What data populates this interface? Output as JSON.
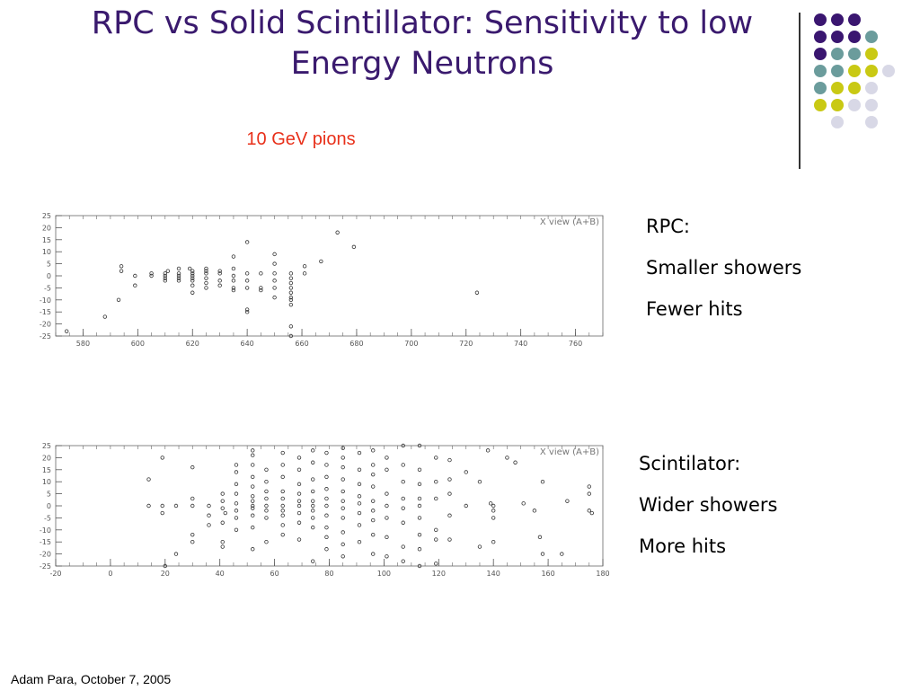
{
  "slide": {
    "title": "RPC vs Solid Scintillator: Sensitivity to low Energy Neutrons",
    "subtitle": "10 GeV pions",
    "footer": "Adam Para, October 7, 2005"
  },
  "notes_rpc": {
    "heading": "RPC:",
    "line1": "Smaller showers",
    "line2": "Fewer hits"
  },
  "notes_scint": {
    "heading": "Scintilator:",
    "line1": "Wider showers",
    "line2": "More hits"
  },
  "decoration": {
    "colors": [
      "#3a1670",
      "#6b9c9c",
      "#c9c914",
      "#d8d8e6"
    ],
    "grid": [
      [
        0,
        0,
        0,
        -1,
        -1
      ],
      [
        0,
        0,
        0,
        1,
        -1
      ],
      [
        0,
        1,
        1,
        2,
        -1
      ],
      [
        1,
        1,
        2,
        2,
        3
      ],
      [
        1,
        2,
        2,
        3,
        -1
      ],
      [
        2,
        2,
        3,
        3,
        -1
      ],
      [
        -1,
        3,
        -1,
        3,
        -1
      ]
    ]
  },
  "chart_data": [
    {
      "type": "scatter",
      "label": "X view (A+B)",
      "xlim": [
        570,
        770
      ],
      "xticks": [
        580,
        600,
        620,
        640,
        660,
        680,
        700,
        720,
        740,
        760
      ],
      "ylim": [
        -25,
        25
      ],
      "yticks": [
        25,
        20,
        15,
        10,
        5,
        0,
        -5,
        -10,
        -15,
        -20,
        -25
      ],
      "points": [
        [
          574,
          -23
        ],
        [
          588,
          -17
        ],
        [
          593,
          -10
        ],
        [
          594,
          2
        ],
        [
          594,
          4
        ],
        [
          599,
          0
        ],
        [
          599,
          -4
        ],
        [
          605,
          1
        ],
        [
          605,
          0
        ],
        [
          610,
          1
        ],
        [
          610,
          0
        ],
        [
          610,
          -1
        ],
        [
          610,
          -2
        ],
        [
          611,
          2
        ],
        [
          615,
          3
        ],
        [
          615,
          1
        ],
        [
          615,
          0
        ],
        [
          615,
          -1
        ],
        [
          615,
          -2
        ],
        [
          619,
          3
        ],
        [
          620,
          2
        ],
        [
          620,
          1
        ],
        [
          620,
          0
        ],
        [
          620,
          -1
        ],
        [
          620,
          -2
        ],
        [
          620,
          -4
        ],
        [
          620,
          -7
        ],
        [
          625,
          3
        ],
        [
          625,
          2
        ],
        [
          625,
          1
        ],
        [
          625,
          -1
        ],
        [
          625,
          -3
        ],
        [
          625,
          -5
        ],
        [
          630,
          2
        ],
        [
          630,
          1
        ],
        [
          630,
          -2
        ],
        [
          630,
          -4
        ],
        [
          635,
          8
        ],
        [
          635,
          3
        ],
        [
          635,
          0
        ],
        [
          635,
          -2
        ],
        [
          635,
          -5
        ],
        [
          635,
          -6
        ],
        [
          640,
          14
        ],
        [
          640,
          1
        ],
        [
          640,
          -2
        ],
        [
          640,
          -5
        ],
        [
          640,
          -14
        ],
        [
          640,
          -15
        ],
        [
          645,
          1
        ],
        [
          645,
          -5
        ],
        [
          645,
          -6
        ],
        [
          650,
          9
        ],
        [
          650,
          5
        ],
        [
          650,
          1
        ],
        [
          650,
          -2
        ],
        [
          650,
          -5
        ],
        [
          650,
          -9
        ],
        [
          656,
          1
        ],
        [
          656,
          -1
        ],
        [
          656,
          -3
        ],
        [
          656,
          -5
        ],
        [
          656,
          -7
        ],
        [
          656,
          -9
        ],
        [
          656,
          -10
        ],
        [
          656,
          -12
        ],
        [
          656,
          -21
        ],
        [
          656,
          -25
        ],
        [
          661,
          4
        ],
        [
          661,
          1
        ],
        [
          667,
          6
        ],
        [
          673,
          18
        ],
        [
          679,
          12
        ],
        [
          724,
          -7
        ]
      ]
    },
    {
      "type": "scatter",
      "label": "X view (A+B)",
      "xlim": [
        -20,
        180
      ],
      "xticks": [
        -20,
        0,
        20,
        40,
        60,
        80,
        100,
        120,
        140,
        160,
        180
      ],
      "ylim": [
        -25,
        25
      ],
      "yticks": [
        25,
        20,
        15,
        10,
        5,
        0,
        -5,
        -10,
        -15,
        -20,
        -25
      ],
      "points": [
        [
          14,
          11
        ],
        [
          14,
          0
        ],
        [
          19,
          20
        ],
        [
          19,
          0
        ],
        [
          19,
          -3
        ],
        [
          24,
          0
        ],
        [
          24,
          -20
        ],
        [
          20,
          -25
        ],
        [
          30,
          16
        ],
        [
          30,
          3
        ],
        [
          30,
          0
        ],
        [
          30,
          -12
        ],
        [
          30,
          -15
        ],
        [
          36,
          0
        ],
        [
          36,
          -4
        ],
        [
          36,
          -8
        ],
        [
          41,
          5
        ],
        [
          41,
          2
        ],
        [
          41,
          -1
        ],
        [
          41,
          -7
        ],
        [
          41,
          -15
        ],
        [
          41,
          -17
        ],
        [
          42,
          -3
        ],
        [
          46,
          17
        ],
        [
          46,
          14
        ],
        [
          46,
          9
        ],
        [
          46,
          5
        ],
        [
          46,
          1
        ],
        [
          46,
          -2
        ],
        [
          46,
          -5
        ],
        [
          46,
          -10
        ],
        [
          52,
          23
        ],
        [
          52,
          21
        ],
        [
          52,
          17
        ],
        [
          52,
          12
        ],
        [
          52,
          8
        ],
        [
          52,
          4
        ],
        [
          52,
          2
        ],
        [
          52,
          0
        ],
        [
          52,
          -1
        ],
        [
          52,
          -4
        ],
        [
          52,
          -9
        ],
        [
          52,
          -18
        ],
        [
          57,
          15
        ],
        [
          57,
          10
        ],
        [
          57,
          6
        ],
        [
          57,
          3
        ],
        [
          57,
          0
        ],
        [
          57,
          -2
        ],
        [
          57,
          -5
        ],
        [
          57,
          -15
        ],
        [
          63,
          22
        ],
        [
          63,
          17
        ],
        [
          63,
          12
        ],
        [
          63,
          6
        ],
        [
          63,
          3
        ],
        [
          63,
          0
        ],
        [
          63,
          -2
        ],
        [
          63,
          -4
        ],
        [
          63,
          -8
        ],
        [
          63,
          -12
        ],
        [
          69,
          20
        ],
        [
          69,
          15
        ],
        [
          69,
          9
        ],
        [
          69,
          5
        ],
        [
          69,
          2
        ],
        [
          69,
          0
        ],
        [
          69,
          -3
        ],
        [
          69,
          -7
        ],
        [
          69,
          -14
        ],
        [
          74,
          23
        ],
        [
          74,
          18
        ],
        [
          74,
          11
        ],
        [
          74,
          6
        ],
        [
          74,
          2
        ],
        [
          74,
          0
        ],
        [
          74,
          -2
        ],
        [
          74,
          -5
        ],
        [
          74,
          -9
        ],
        [
          74,
          -23
        ],
        [
          79,
          22
        ],
        [
          79,
          17
        ],
        [
          79,
          12
        ],
        [
          79,
          7
        ],
        [
          79,
          3
        ],
        [
          79,
          0
        ],
        [
          79,
          -4
        ],
        [
          79,
          -9
        ],
        [
          79,
          -13
        ],
        [
          79,
          -18
        ],
        [
          85,
          24
        ],
        [
          85,
          20
        ],
        [
          85,
          16
        ],
        [
          85,
          11
        ],
        [
          85,
          6
        ],
        [
          85,
          2
        ],
        [
          85,
          -1
        ],
        [
          85,
          -5
        ],
        [
          85,
          -11
        ],
        [
          85,
          -16
        ],
        [
          85,
          -21
        ],
        [
          91,
          22
        ],
        [
          91,
          15
        ],
        [
          91,
          9
        ],
        [
          91,
          4
        ],
        [
          91,
          1
        ],
        [
          91,
          -3
        ],
        [
          91,
          -8
        ],
        [
          91,
          -15
        ],
        [
          96,
          23
        ],
        [
          96,
          17
        ],
        [
          96,
          13
        ],
        [
          96,
          8
        ],
        [
          96,
          2
        ],
        [
          96,
          -2
        ],
        [
          96,
          -6
        ],
        [
          96,
          -12
        ],
        [
          96,
          -20
        ],
        [
          101,
          20
        ],
        [
          101,
          15
        ],
        [
          101,
          5
        ],
        [
          101,
          0
        ],
        [
          101,
          -5
        ],
        [
          101,
          -13
        ],
        [
          101,
          -21
        ],
        [
          107,
          25
        ],
        [
          107,
          17
        ],
        [
          107,
          10
        ],
        [
          107,
          3
        ],
        [
          107,
          -1
        ],
        [
          107,
          -7
        ],
        [
          107,
          -17
        ],
        [
          107,
          -23
        ],
        [
          113,
          25
        ],
        [
          113,
          15
        ],
        [
          113,
          9
        ],
        [
          113,
          3
        ],
        [
          113,
          0
        ],
        [
          113,
          -5
        ],
        [
          113,
          -12
        ],
        [
          113,
          -18
        ],
        [
          113,
          -25
        ],
        [
          119,
          20
        ],
        [
          119,
          10
        ],
        [
          119,
          3
        ],
        [
          119,
          -10
        ],
        [
          119,
          -14
        ],
        [
          119,
          -24
        ],
        [
          124,
          19
        ],
        [
          124,
          11
        ],
        [
          124,
          5
        ],
        [
          124,
          -4
        ],
        [
          124,
          -14
        ],
        [
          130,
          14
        ],
        [
          130,
          0
        ],
        [
          135,
          10
        ],
        [
          135,
          -17
        ],
        [
          139,
          1
        ],
        [
          140,
          0
        ],
        [
          140,
          -2
        ],
        [
          140,
          -5
        ],
        [
          140,
          -15
        ],
        [
          145,
          20
        ],
        [
          148,
          18
        ],
        [
          151,
          1
        ],
        [
          155,
          -2
        ],
        [
          157,
          -13
        ],
        [
          158,
          10
        ],
        [
          158,
          -20
        ],
        [
          165,
          -20
        ],
        [
          167,
          2
        ],
        [
          175,
          5
        ],
        [
          175,
          -2
        ],
        [
          175,
          8
        ],
        [
          176,
          -3
        ],
        [
          138,
          23
        ]
      ]
    }
  ]
}
